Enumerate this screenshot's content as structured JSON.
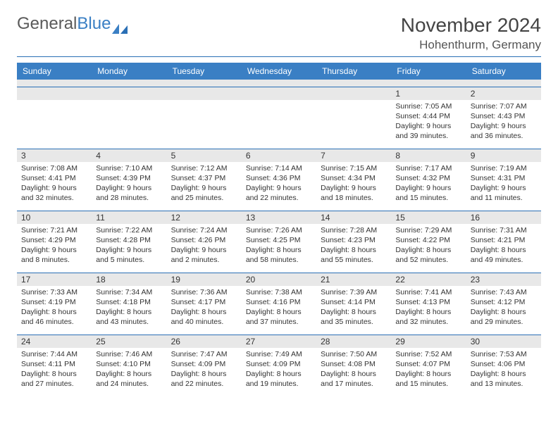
{
  "brand": {
    "part1": "General",
    "part2": "Blue"
  },
  "header": {
    "month_title": "November 2024",
    "location": "Hohenthurm, Germany"
  },
  "colors": {
    "accent": "#3a7fc4",
    "rule": "#2a6fb5",
    "cell_header": "#e8e8e8",
    "bg": "#ffffff"
  },
  "layout": {
    "columns": 7,
    "rows": 5,
    "first_weekday_index": 5
  },
  "weekdays": [
    "Sunday",
    "Monday",
    "Tuesday",
    "Wednesday",
    "Thursday",
    "Friday",
    "Saturday"
  ],
  "days": [
    {
      "n": 1,
      "sr": "7:05 AM",
      "ss": "4:44 PM",
      "dl": "9 hours and 39 minutes."
    },
    {
      "n": 2,
      "sr": "7:07 AM",
      "ss": "4:43 PM",
      "dl": "9 hours and 36 minutes."
    },
    {
      "n": 3,
      "sr": "7:08 AM",
      "ss": "4:41 PM",
      "dl": "9 hours and 32 minutes."
    },
    {
      "n": 4,
      "sr": "7:10 AM",
      "ss": "4:39 PM",
      "dl": "9 hours and 28 minutes."
    },
    {
      "n": 5,
      "sr": "7:12 AM",
      "ss": "4:37 PM",
      "dl": "9 hours and 25 minutes."
    },
    {
      "n": 6,
      "sr": "7:14 AM",
      "ss": "4:36 PM",
      "dl": "9 hours and 22 minutes."
    },
    {
      "n": 7,
      "sr": "7:15 AM",
      "ss": "4:34 PM",
      "dl": "9 hours and 18 minutes."
    },
    {
      "n": 8,
      "sr": "7:17 AM",
      "ss": "4:32 PM",
      "dl": "9 hours and 15 minutes."
    },
    {
      "n": 9,
      "sr": "7:19 AM",
      "ss": "4:31 PM",
      "dl": "9 hours and 11 minutes."
    },
    {
      "n": 10,
      "sr": "7:21 AM",
      "ss": "4:29 PM",
      "dl": "9 hours and 8 minutes."
    },
    {
      "n": 11,
      "sr": "7:22 AM",
      "ss": "4:28 PM",
      "dl": "9 hours and 5 minutes."
    },
    {
      "n": 12,
      "sr": "7:24 AM",
      "ss": "4:26 PM",
      "dl": "9 hours and 2 minutes."
    },
    {
      "n": 13,
      "sr": "7:26 AM",
      "ss": "4:25 PM",
      "dl": "8 hours and 58 minutes."
    },
    {
      "n": 14,
      "sr": "7:28 AM",
      "ss": "4:23 PM",
      "dl": "8 hours and 55 minutes."
    },
    {
      "n": 15,
      "sr": "7:29 AM",
      "ss": "4:22 PM",
      "dl": "8 hours and 52 minutes."
    },
    {
      "n": 16,
      "sr": "7:31 AM",
      "ss": "4:21 PM",
      "dl": "8 hours and 49 minutes."
    },
    {
      "n": 17,
      "sr": "7:33 AM",
      "ss": "4:19 PM",
      "dl": "8 hours and 46 minutes."
    },
    {
      "n": 18,
      "sr": "7:34 AM",
      "ss": "4:18 PM",
      "dl": "8 hours and 43 minutes."
    },
    {
      "n": 19,
      "sr": "7:36 AM",
      "ss": "4:17 PM",
      "dl": "8 hours and 40 minutes."
    },
    {
      "n": 20,
      "sr": "7:38 AM",
      "ss": "4:16 PM",
      "dl": "8 hours and 37 minutes."
    },
    {
      "n": 21,
      "sr": "7:39 AM",
      "ss": "4:14 PM",
      "dl": "8 hours and 35 minutes."
    },
    {
      "n": 22,
      "sr": "7:41 AM",
      "ss": "4:13 PM",
      "dl": "8 hours and 32 minutes."
    },
    {
      "n": 23,
      "sr": "7:43 AM",
      "ss": "4:12 PM",
      "dl": "8 hours and 29 minutes."
    },
    {
      "n": 24,
      "sr": "7:44 AM",
      "ss": "4:11 PM",
      "dl": "8 hours and 27 minutes."
    },
    {
      "n": 25,
      "sr": "7:46 AM",
      "ss": "4:10 PM",
      "dl": "8 hours and 24 minutes."
    },
    {
      "n": 26,
      "sr": "7:47 AM",
      "ss": "4:09 PM",
      "dl": "8 hours and 22 minutes."
    },
    {
      "n": 27,
      "sr": "7:49 AM",
      "ss": "4:09 PM",
      "dl": "8 hours and 19 minutes."
    },
    {
      "n": 28,
      "sr": "7:50 AM",
      "ss": "4:08 PM",
      "dl": "8 hours and 17 minutes."
    },
    {
      "n": 29,
      "sr": "7:52 AM",
      "ss": "4:07 PM",
      "dl": "8 hours and 15 minutes."
    },
    {
      "n": 30,
      "sr": "7:53 AM",
      "ss": "4:06 PM",
      "dl": "8 hours and 13 minutes."
    }
  ],
  "labels": {
    "sunrise": "Sunrise:",
    "sunset": "Sunset:",
    "daylight": "Daylight:"
  }
}
